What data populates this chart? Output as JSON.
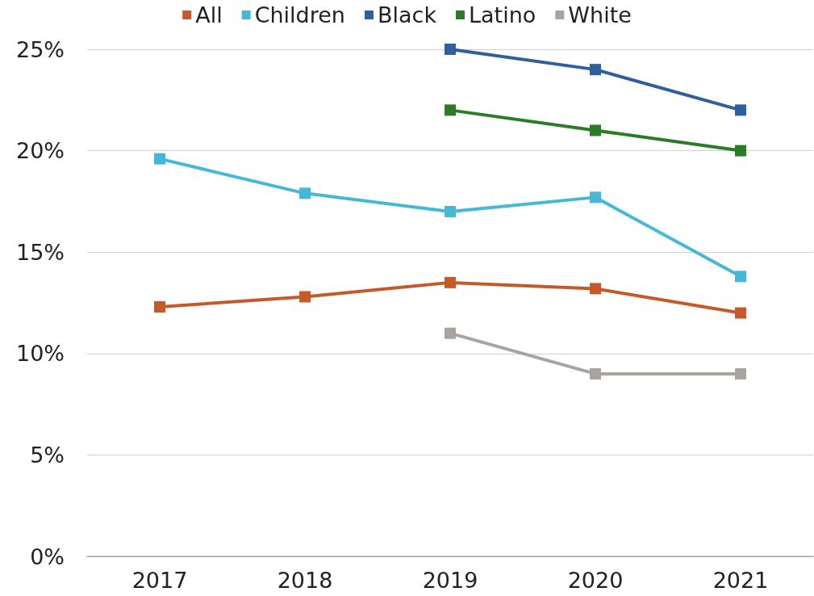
{
  "chart_data": {
    "type": "line",
    "categories": [
      "2017",
      "2018",
      "2019",
      "2020",
      "2021"
    ],
    "series": [
      {
        "name": "All",
        "color": "#c55a28",
        "values": [
          12.3,
          12.8,
          13.5,
          13.2,
          12.0
        ]
      },
      {
        "name": "Children",
        "color": "#45b8d8",
        "values": [
          19.6,
          17.9,
          17.0,
          17.7,
          13.8
        ]
      },
      {
        "name": "Black",
        "color": "#2e5f9e",
        "values": [
          null,
          null,
          25,
          24,
          22
        ]
      },
      {
        "name": "Latino",
        "color": "#2a7d24",
        "values": [
          null,
          null,
          22,
          21,
          20
        ]
      },
      {
        "name": "White",
        "color": "#aaa39f",
        "values": [
          null,
          null,
          11.0,
          9.0,
          9.0
        ]
      }
    ],
    "ylim": [
      0,
      25
    ],
    "yticks": [
      {
        "value": 0,
        "label": "0%"
      },
      {
        "value": 5,
        "label": "5%"
      },
      {
        "value": 10,
        "label": "10%"
      },
      {
        "value": 15,
        "label": "15%"
      },
      {
        "value": 20,
        "label": "20%"
      },
      {
        "value": 25,
        "label": "25%"
      }
    ],
    "grid": "y",
    "legend": "top",
    "marker": "square",
    "line_style": "solid"
  }
}
